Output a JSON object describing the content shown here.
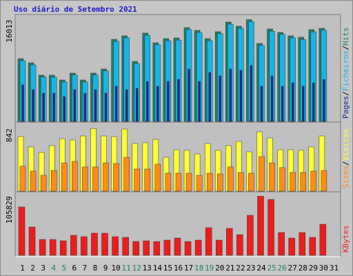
{
  "chart_data": [
    {
      "type": "bar",
      "title": "Uso diário de Setembro 2021",
      "legend_separator": "/",
      "ylim": [
        0,
        16500
      ],
      "yticks": [
        16013
      ],
      "series": [
        {
          "name": "Hits",
          "color": "#1d7f68",
          "values": [
            9880,
            9230,
            7280,
            7280,
            6520,
            7600,
            6520,
            7600,
            8250,
            12920,
            13470,
            9450,
            13900,
            12380,
            13030,
            13140,
            14770,
            14330,
            13030,
            14120,
            15640,
            14990,
            16013,
            12270,
            14550,
            14010,
            13470,
            13250,
            14440,
            14660,
            null
          ]
        },
        {
          "name": "Ficheiros",
          "color": "#18b4e8",
          "values": [
            9550,
            8900,
            7000,
            6950,
            6200,
            7300,
            6200,
            7300,
            7950,
            12600,
            13150,
            9100,
            13550,
            12050,
            12700,
            12800,
            14450,
            14000,
            12700,
            13800,
            15300,
            14650,
            15700,
            11950,
            14200,
            13700,
            13150,
            12900,
            14100,
            14350,
            null
          ]
        },
        {
          "name": "Pages",
          "color": "#1a2a8c",
          "values": [
            5760,
            5000,
            4450,
            4450,
            3910,
            5000,
            4450,
            5000,
            4450,
            5540,
            5000,
            5210,
            6300,
            5540,
            6300,
            6620,
            8250,
            6300,
            7710,
            7170,
            8250,
            8040,
            8800,
            5540,
            7170,
            5540,
            6080,
            5540,
            6080,
            6620,
            null
          ]
        }
      ]
    },
    {
      "type": "bar",
      "legend_separator": "/",
      "ylim": [
        0,
        900
      ],
      "yticks": [
        842
      ],
      "series": [
        {
          "name": "Visitas",
          "color": "#ffff33",
          "values": [
            733,
            594,
            520,
            612,
            705,
            687,
            742,
            842,
            742,
            733,
            835,
            640,
            650,
            696,
            455,
            557,
            548,
            501,
            640,
            548,
            612,
            668,
            529,
            798,
            715,
            557,
            557,
            548,
            594,
            742,
            null
          ]
        },
        {
          "name": "Sites",
          "color": "#ff8c1a",
          "values": [
            334,
            269,
            213,
            278,
            380,
            399,
            325,
            325,
            380,
            371,
            455,
            297,
            297,
            362,
            241,
            241,
            241,
            213,
            241,
            232,
            325,
            251,
            241,
            464,
            380,
            316,
            251,
            251,
            269,
            278,
            null
          ]
        }
      ]
    },
    {
      "type": "bar",
      "ylim": [
        0,
        110000
      ],
      "yticks": [
        105829
      ],
      "categories": [
        "1",
        "2",
        "3",
        "4",
        "5",
        "6",
        "7",
        "8",
        "9",
        "10",
        "11",
        "12",
        "13",
        "14",
        "15",
        "16",
        "17",
        "18",
        "19",
        "20",
        "21",
        "22",
        "23",
        "24",
        "25",
        "26",
        "27",
        "28",
        "29",
        "30",
        "31"
      ],
      "category_colors": [
        "#000000",
        "#000000",
        "#000000",
        "#1d7f68",
        "#1d7f68",
        "#000000",
        "#000000",
        "#000000",
        "#000000",
        "#000000",
        "#1d7f68",
        "#1d7f68",
        "#000000",
        "#000000",
        "#000000",
        "#000000",
        "#000000",
        "#1d7f68",
        "#1d7f68",
        "#000000",
        "#000000",
        "#000000",
        "#000000",
        "#000000",
        "#1d7f68",
        "#1d7f68",
        "#000000",
        "#000000",
        "#000000",
        "#000000",
        "#000000"
      ],
      "series": [
        {
          "name": "KBytes",
          "color": "#ee1c1c",
          "values": [
            86520,
            50680,
            28430,
            28430,
            25960,
            35840,
            33370,
            39550,
            39550,
            33370,
            32140,
            24720,
            25960,
            24720,
            27190,
            30900,
            24720,
            27190,
            49440,
            27190,
            48200,
            37080,
            71690,
            105829,
            100120,
            40790,
            30900,
            40790,
            32140,
            55620,
            null
          ]
        }
      ]
    }
  ]
}
